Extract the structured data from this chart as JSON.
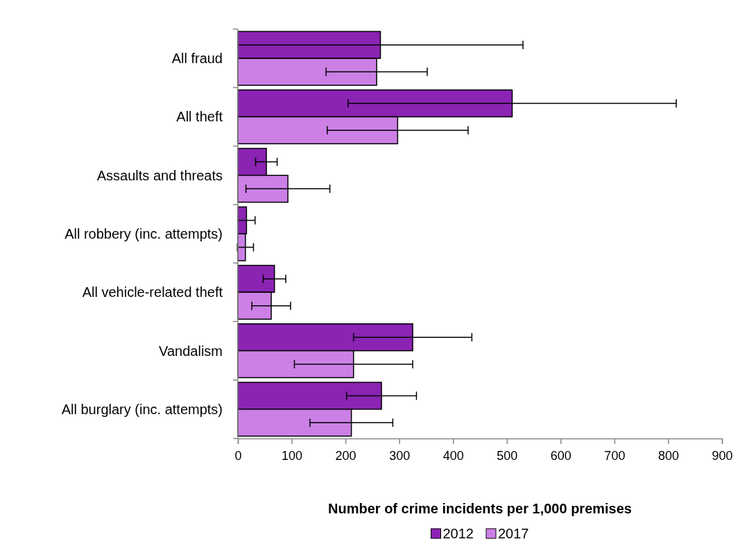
{
  "chart_data": {
    "type": "bar",
    "orientation": "horizontal",
    "categories": [
      "All fraud",
      "All theft",
      "Assaults and threats",
      "All robbery (inc. attempts)",
      "All vehicle-related theft",
      "Vandalism",
      "All burglary (inc. attempts)"
    ],
    "series": [
      {
        "name": "2012",
        "color": "#8b23b3",
        "values": [
          265,
          510,
          53,
          16,
          68,
          325,
          267
        ],
        "errors": [
          265,
          305,
          20,
          16,
          21,
          110,
          65
        ]
      },
      {
        "name": "2017",
        "color": "#cc80e6",
        "values": [
          258,
          297,
          93,
          14,
          62,
          215,
          211
        ],
        "errors": [
          94,
          131,
          78,
          15,
          36,
          110,
          77
        ]
      }
    ],
    "xlim": [
      0,
      900
    ],
    "xticks": [
      0,
      100,
      200,
      300,
      400,
      500,
      600,
      700,
      800,
      900
    ],
    "xlabel": "Number of crime incidents per 1,000 premises",
    "legend": "bottom",
    "grid": false
  }
}
